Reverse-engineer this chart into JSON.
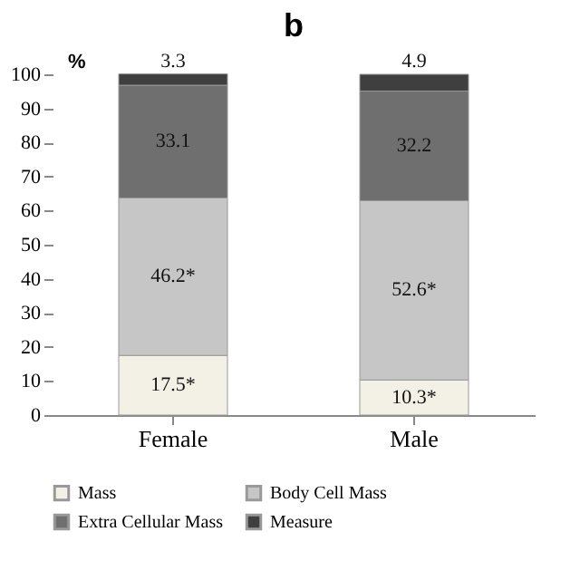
{
  "chart_data": {
    "type": "bar",
    "stacked": true,
    "title": "b",
    "ylabel": "%",
    "categories": [
      "Female",
      "Male"
    ],
    "series": [
      {
        "name": "Mass",
        "color": "#f3f0e6",
        "values": [
          17.5,
          10.3
        ],
        "value_labels": [
          "17.5*",
          "10.3*"
        ]
      },
      {
        "name": "Body Cell Mass",
        "color": "#c6c6c6",
        "values": [
          46.2,
          52.6
        ],
        "value_labels": [
          "46.2*",
          "52.6*"
        ]
      },
      {
        "name": "Extra Cellular Mass",
        "color": "#6f6f6f",
        "values": [
          33.1,
          32.2
        ],
        "value_labels": [
          "33.1",
          "32.2"
        ]
      },
      {
        "name": "Measure",
        "color": "#3f3f3f",
        "values": [
          3.3,
          4.9
        ],
        "value_labels": [
          "3.3",
          "4.9"
        ]
      }
    ],
    "ylim": [
      0,
      100
    ],
    "yticks": [
      0,
      10,
      20,
      30,
      40,
      50,
      60,
      70,
      80,
      90,
      100
    ],
    "grid": false,
    "legend": "bottom"
  }
}
